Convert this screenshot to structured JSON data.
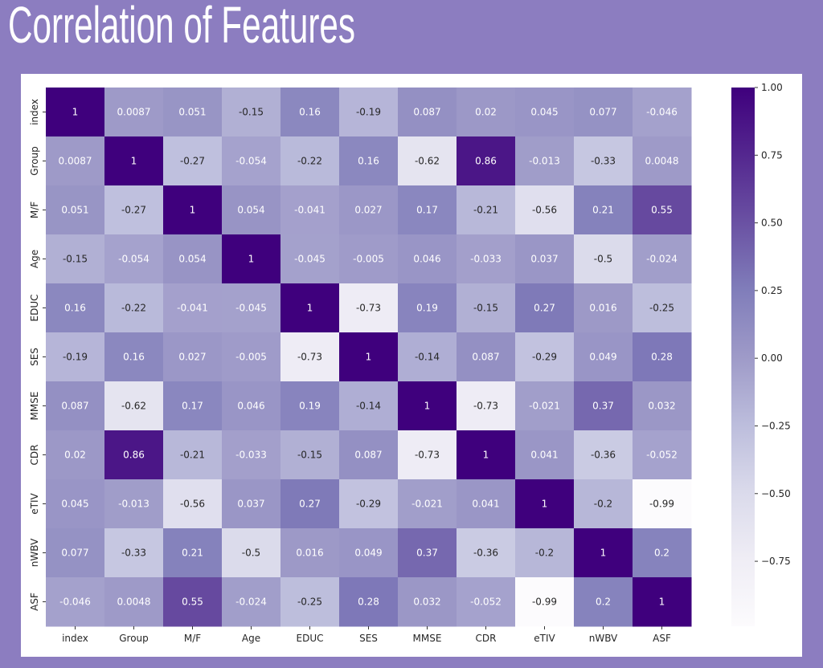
{
  "slide": {
    "title": "Correlation of Features",
    "background": "#8c7dc0"
  },
  "chart_data": {
    "type": "heatmap",
    "colormap": "Purples",
    "vmin": -0.99,
    "vmax": 1.0,
    "labels": [
      "index",
      "Group",
      "M/F",
      "Age",
      "EDUC",
      "SES",
      "MMSE",
      "CDR",
      "eTIV",
      "nWBV",
      "ASF"
    ],
    "values": [
      [
        "1",
        "0.0087",
        "0.051",
        "-0.15",
        "0.16",
        "-0.19",
        "0.087",
        "0.02",
        "0.045",
        "0.077",
        "-0.046"
      ],
      [
        "0.0087",
        "1",
        "-0.27",
        "-0.054",
        "-0.22",
        "0.16",
        "-0.62",
        "0.86",
        "-0.013",
        "-0.33",
        "0.0048"
      ],
      [
        "0.051",
        "-0.27",
        "1",
        "0.054",
        "-0.041",
        "0.027",
        "0.17",
        "-0.21",
        "-0.56",
        "0.21",
        "0.55"
      ],
      [
        "-0.15",
        "-0.054",
        "0.054",
        "1",
        "-0.045",
        "-0.005",
        "0.046",
        "-0.033",
        "0.037",
        "-0.5",
        "-0.024"
      ],
      [
        "0.16",
        "-0.22",
        "-0.041",
        "-0.045",
        "1",
        "-0.73",
        "0.19",
        "-0.15",
        "0.27",
        "0.016",
        "-0.25"
      ],
      [
        "-0.19",
        "0.16",
        "0.027",
        "-0.005",
        "-0.73",
        "1",
        "-0.14",
        "0.087",
        "-0.29",
        "0.049",
        "0.28"
      ],
      [
        "0.087",
        "-0.62",
        "0.17",
        "0.046",
        "0.19",
        "-0.14",
        "1",
        "-0.73",
        "-0.021",
        "0.37",
        "0.032"
      ],
      [
        "0.02",
        "0.86",
        "-0.21",
        "-0.033",
        "-0.15",
        "0.087",
        "-0.73",
        "1",
        "0.041",
        "-0.36",
        "-0.052"
      ],
      [
        "0.045",
        "-0.013",
        "-0.56",
        "0.037",
        "0.27",
        "-0.29",
        "-0.021",
        "0.041",
        "1",
        "-0.2",
        "-0.99"
      ],
      [
        "0.077",
        "-0.33",
        "0.21",
        "-0.5",
        "0.016",
        "0.049",
        "0.37",
        "-0.36",
        "-0.2",
        "1",
        "0.2"
      ],
      [
        "-0.046",
        "0.0048",
        "0.55",
        "-0.024",
        "-0.25",
        "0.28",
        "0.032",
        "-0.052",
        "-0.99",
        "0.2",
        "1"
      ]
    ],
    "colorbar_ticks": [
      "1.00",
      "0.75",
      "0.50",
      "0.25",
      "0.00",
      "−0.25",
      "−0.50",
      "−0.75"
    ],
    "colorbar_tick_values": [
      1.0,
      0.75,
      0.5,
      0.25,
      0.0,
      -0.25,
      -0.5,
      -0.75
    ],
    "annotations": true
  }
}
